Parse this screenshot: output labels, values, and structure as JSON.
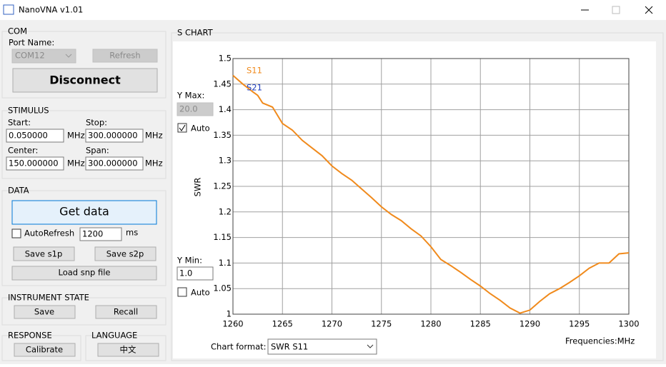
{
  "window": {
    "title": "NanoVNA v1.01"
  },
  "com": {
    "title": "COM",
    "port_label": "Port Name:",
    "port": "COM12",
    "refresh": "Refresh",
    "disconnect": "Disconnect"
  },
  "stimulus": {
    "title": "STIMULUS",
    "start_label": "Start:",
    "start": "0.050000",
    "stop_label": "Stop:",
    "stop": "300.000000",
    "center_label": "Center:",
    "center": "150.000000",
    "span_label": "Span:",
    "span": "300.000000",
    "unit": "MHz"
  },
  "data": {
    "title": "DATA",
    "get_data": "Get data",
    "auto_refresh": "AutoRefresh",
    "interval": "1200",
    "interval_unit": "ms",
    "save_s1p": "Save s1p",
    "save_s2p": "Save s2p",
    "load": "Load snp file"
  },
  "instrument": {
    "title": "INSTRUMENT STATE",
    "save": "Save",
    "recall": "Recall"
  },
  "response": {
    "title": "RESPONSE",
    "calibrate": "Calibrate"
  },
  "language": {
    "title": "LANGUAGE",
    "button": "中文"
  },
  "chart_panel": {
    "title": "S CHART",
    "ymax_label": "Y Max:",
    "ymax": "20.0",
    "auto": "Auto",
    "ymin_label": "Y Min:",
    "ymin": "1.0",
    "format_label": "Chart format:",
    "format": "SWR S11"
  },
  "chart_data": {
    "type": "line",
    "ylabel": "SWR",
    "xlabel": "Frequencies:MHz",
    "x": [
      1260,
      1261,
      1262,
      1262.5,
      1263,
      1264,
      1265,
      1266,
      1267,
      1268,
      1269,
      1270,
      1271,
      1272,
      1273,
      1274,
      1275,
      1276,
      1277,
      1278,
      1279,
      1280,
      1281,
      1282,
      1283,
      1284,
      1285,
      1286,
      1287,
      1288,
      1289,
      1290,
      1291,
      1292,
      1293,
      1294,
      1295,
      1296,
      1297,
      1298,
      1299,
      1300
    ],
    "series": [
      {
        "name": "S11",
        "color": "#f08a1c",
        "values": [
          1.467,
          1.45,
          1.435,
          1.428,
          1.413,
          1.405,
          1.373,
          1.36,
          1.34,
          1.325,
          1.31,
          1.29,
          1.275,
          1.262,
          1.245,
          1.228,
          1.21,
          1.195,
          1.183,
          1.167,
          1.153,
          1.132,
          1.107,
          1.095,
          1.082,
          1.068,
          1.055,
          1.04,
          1.027,
          1.012,
          1.002,
          1.008,
          1.025,
          1.04,
          1.05,
          1.062,
          1.075,
          1.09,
          1.1,
          1.1,
          1.118,
          1.12
        ]
      },
      {
        "name": "S21",
        "color": "#1f3fbf",
        "values": [
          null,
          null,
          null,
          null,
          null,
          null,
          null,
          null,
          null,
          null,
          null,
          null,
          null,
          null,
          null,
          null,
          null,
          null,
          null,
          null,
          null,
          null,
          null,
          null,
          null,
          null,
          null,
          null,
          null,
          null,
          null,
          null,
          null,
          null,
          null,
          null,
          null,
          null,
          null,
          null,
          null,
          null
        ]
      }
    ],
    "xlim": [
      1260,
      1300
    ],
    "xticks": [
      1260,
      1265,
      1270,
      1275,
      1280,
      1285,
      1290,
      1295,
      1300
    ],
    "ylim": [
      1,
      1.5
    ],
    "yticks": [
      1,
      1.05,
      1.1,
      1.15,
      1.2,
      1.25,
      1.3,
      1.35,
      1.4,
      1.45,
      1.5
    ],
    "grid": true
  }
}
